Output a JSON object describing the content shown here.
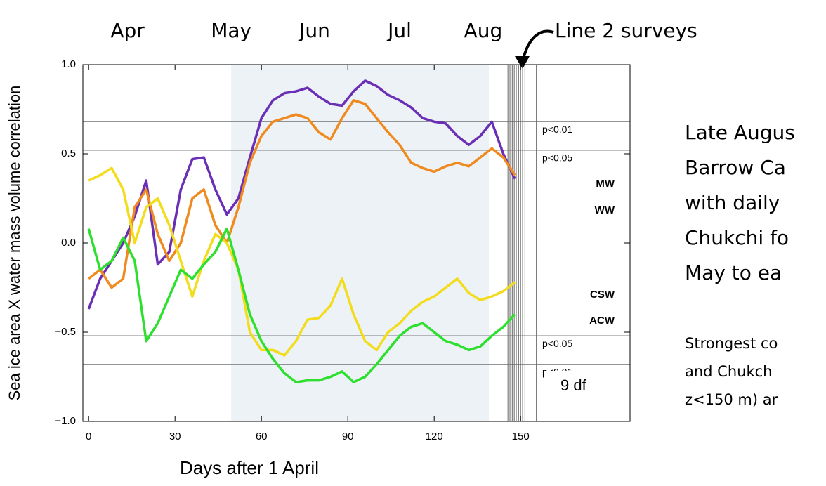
{
  "chart_data": {
    "type": "line",
    "ylabel": "Sea ice area X water mass volume correlation",
    "xlabel": "Days after 1 April",
    "xlim": [
      -2,
      188
    ],
    "ylim": [
      -1.0,
      1.0
    ],
    "xticks": [
      0,
      30,
      60,
      90,
      120,
      150
    ],
    "yticks": [
      {
        "value": 1.0,
        "label": "1.0"
      },
      {
        "value": 0.5,
        "label": "0.5"
      },
      {
        "value": 0.0,
        "label": "0.0"
      },
      {
        "value": -0.5,
        "label": "−0.5"
      },
      {
        "value": -1.0,
        "label": "−1.0"
      }
    ],
    "x2ticks": [
      {
        "value": 13.5,
        "label": "Apr"
      },
      {
        "value": 49.5,
        "label": "May"
      },
      {
        "value": 78.5,
        "label": "Jun"
      },
      {
        "value": 108,
        "label": "Jul"
      },
      {
        "value": 137,
        "label": "Aug"
      }
    ],
    "shaded_span": [
      49.5,
      139
    ],
    "survey_days": [
      145.6,
      146.3,
      147.1,
      147.8,
      148.5,
      149.3,
      150,
      150.7,
      151.5
    ],
    "end_line": 155.5,
    "hlines": [
      {
        "value": 0.68,
        "label": "p<0.01"
      },
      {
        "value": 0.52,
        "label": "p<0.05"
      },
      {
        "value": -0.52,
        "label": "p<0.05"
      },
      {
        "value": -0.68,
        "label": "p<0.01"
      }
    ],
    "x": [
      0,
      4,
      8,
      12,
      16,
      20,
      24,
      28,
      32,
      36,
      40,
      44,
      48,
      52,
      56,
      60,
      64,
      68,
      72,
      76,
      80,
      84,
      88,
      92,
      96,
      100,
      104,
      108,
      112,
      116,
      120,
      124,
      128,
      132,
      136,
      140,
      144,
      148
    ],
    "series": [
      {
        "name": "MW",
        "color": "#6a2fb5",
        "values": [
          -0.37,
          -0.2,
          -0.1,
          0.0,
          0.15,
          0.35,
          -0.12,
          -0.05,
          0.3,
          0.47,
          0.48,
          0.3,
          0.16,
          0.25,
          0.48,
          0.7,
          0.8,
          0.84,
          0.85,
          0.87,
          0.82,
          0.78,
          0.77,
          0.85,
          0.91,
          0.88,
          0.83,
          0.8,
          0.76,
          0.7,
          0.68,
          0.67,
          0.6,
          0.55,
          0.6,
          0.68,
          0.5,
          0.36
        ]
      },
      {
        "name": "WW",
        "color": "#f08a1e",
        "values": [
          -0.2,
          -0.15,
          -0.25,
          -0.2,
          0.2,
          0.3,
          0.05,
          -0.1,
          0.0,
          0.25,
          0.3,
          0.1,
          0.0,
          0.2,
          0.45,
          0.6,
          0.68,
          0.7,
          0.72,
          0.7,
          0.62,
          0.58,
          0.7,
          0.8,
          0.78,
          0.7,
          0.62,
          0.55,
          0.45,
          0.42,
          0.4,
          0.43,
          0.45,
          0.43,
          0.48,
          0.53,
          0.48,
          0.38
        ]
      },
      {
        "name": "CSW",
        "color": "#f2dc1c",
        "values": [
          0.35,
          0.38,
          0.42,
          0.3,
          0.0,
          0.2,
          0.25,
          0.1,
          -0.1,
          -0.3,
          -0.1,
          0.05,
          0.0,
          -0.15,
          -0.5,
          -0.6,
          -0.6,
          -0.63,
          -0.55,
          -0.43,
          -0.42,
          -0.35,
          -0.2,
          -0.4,
          -0.55,
          -0.6,
          -0.5,
          -0.45,
          -0.38,
          -0.33,
          -0.3,
          -0.25,
          -0.2,
          -0.28,
          -0.32,
          -0.3,
          -0.27,
          -0.22
        ]
      },
      {
        "name": "ACW",
        "color": "#2ee02e",
        "values": [
          0.08,
          -0.15,
          -0.1,
          0.03,
          -0.1,
          -0.55,
          -0.45,
          -0.3,
          -0.15,
          -0.2,
          -0.12,
          -0.05,
          0.08,
          -0.15,
          -0.4,
          -0.55,
          -0.65,
          -0.73,
          -0.78,
          -0.77,
          -0.77,
          -0.75,
          -0.72,
          -0.78,
          -0.75,
          -0.68,
          -0.6,
          -0.52,
          -0.47,
          -0.45,
          -0.5,
          -0.55,
          -0.57,
          -0.6,
          -0.58,
          -0.52,
          -0.47,
          -0.4
        ]
      }
    ],
    "df_label": "9 df",
    "callout": "Line 2 surveys",
    "side_text": [
      "Late Augus",
      "Barrow Ca",
      "with daily",
      "Chukchi fo",
      "May to ea"
    ],
    "side_text_small": [
      "Strongest co",
      "and Chukch",
      "z<150 m) ar"
    ]
  }
}
